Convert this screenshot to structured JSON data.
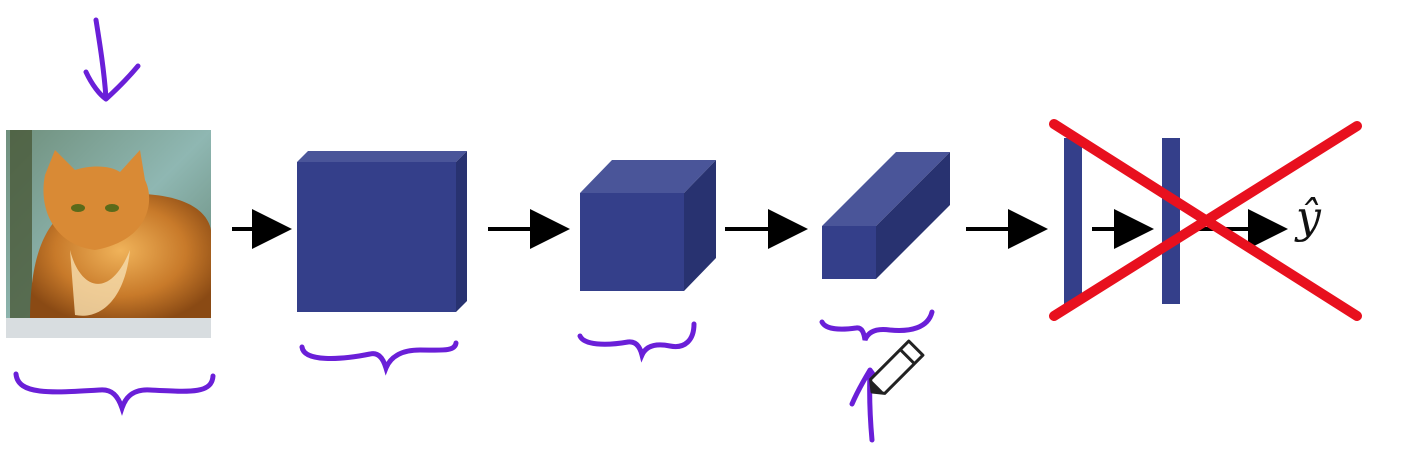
{
  "output_label": "ŷ",
  "colors": {
    "volume_front": "#343F8A",
    "volume_top": "#4A5599",
    "volume_side": "#283270",
    "arrow": "#000000",
    "ink": "#6A1FD8",
    "cross": "#E8101E"
  },
  "icons": {
    "input": "cat-photo",
    "cursor": "pencil-icon"
  }
}
